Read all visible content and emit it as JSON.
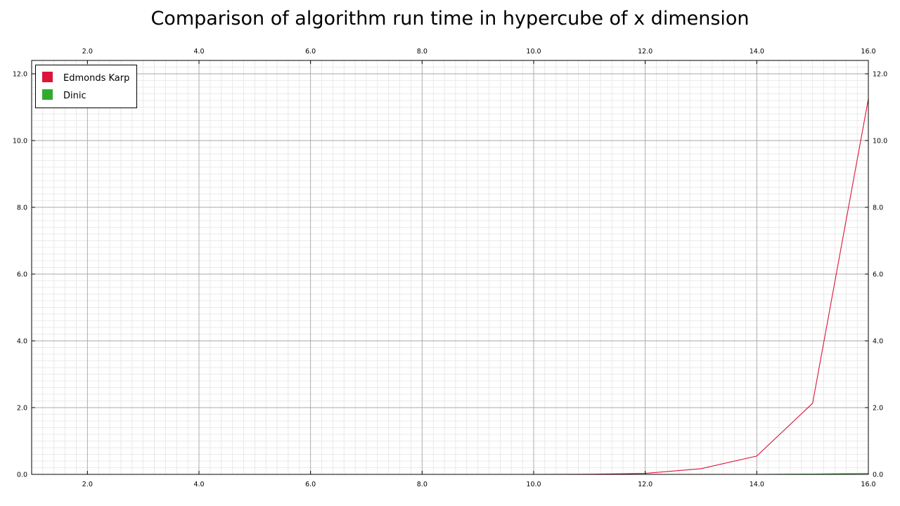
{
  "chart_data": {
    "type": "line",
    "title": "Comparison of algorithm run time in hypercube of x dimension",
    "xlabel": "",
    "ylabel": "",
    "xlim": [
      1,
      16
    ],
    "ylim": [
      0,
      12.4
    ],
    "x_ticks": [
      "2.0",
      "4.0",
      "6.0",
      "8.0",
      "10.0",
      "12.0",
      "14.0",
      "16.0"
    ],
    "y_ticks": [
      "0.0",
      "2.0",
      "4.0",
      "6.0",
      "8.0",
      "10.0",
      "12.0"
    ],
    "x_tick_values": [
      2,
      4,
      6,
      8,
      10,
      12,
      14,
      16
    ],
    "y_tick_values": [
      0,
      2,
      4,
      6,
      8,
      10,
      12
    ],
    "grid": true,
    "legend_position": "top-left",
    "x": [
      1,
      2,
      3,
      4,
      5,
      6,
      7,
      8,
      9,
      10,
      11,
      12,
      13,
      14,
      15,
      16
    ],
    "series": [
      {
        "name": "Edmonds Karp",
        "color": "#dc143c",
        "values": [
          0,
          0,
          0,
          0,
          0,
          0,
          0,
          0,
          0,
          0,
          0.005,
          0.03,
          0.17,
          0.55,
          2.13,
          11.25
        ]
      },
      {
        "name": "Dinic",
        "color": "#32aa32",
        "values": [
          0,
          0,
          0,
          0,
          0,
          0,
          0,
          0,
          0,
          0,
          0,
          0,
          0,
          0,
          0.01,
          0.03
        ]
      }
    ]
  }
}
